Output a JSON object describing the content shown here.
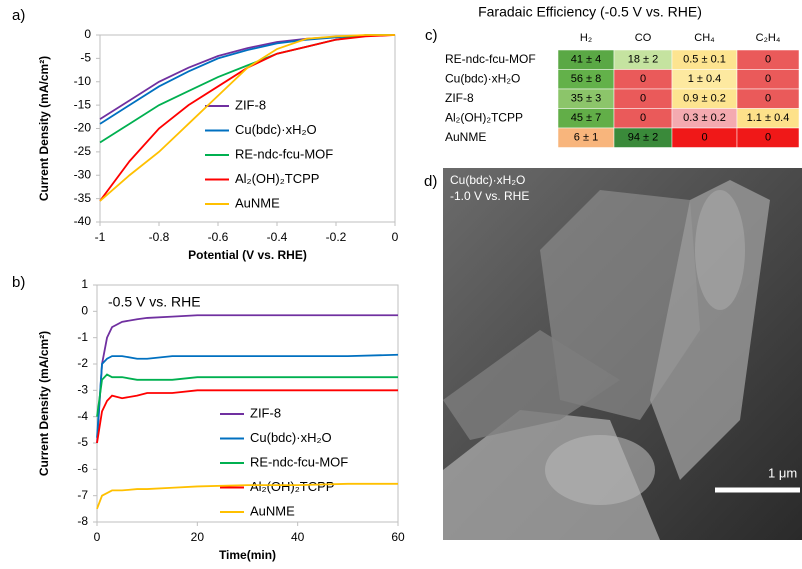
{
  "chart_data": [
    {
      "type": "line",
      "label": "a)",
      "xlabel": "Potential (V vs. RHE)",
      "ylabel": "Current Density (mA/cm²)",
      "x": [
        -1,
        -0.9,
        -0.8,
        -0.7,
        -0.6,
        -0.5,
        -0.4,
        -0.3,
        -0.2,
        -0.1,
        0
      ],
      "xlim": [
        -1,
        0
      ],
      "xticks": [
        -1,
        -0.8,
        -0.6,
        -0.4,
        -0.2,
        0
      ],
      "ylim": [
        -40,
        0
      ],
      "yticks": [
        -40,
        -35,
        -30,
        -25,
        -20,
        -15,
        -10,
        -5,
        0
      ],
      "series": [
        {
          "name": "ZIF-8",
          "color": "#7030a0",
          "values": [
            -18,
            -14,
            -10,
            -7,
            -4.5,
            -2.8,
            -1.5,
            -0.8,
            -0.4,
            -0.1,
            0
          ]
        },
        {
          "name": "Cu(bdc)·xH₂O",
          "color": "#0070c0",
          "values": [
            -19,
            -15,
            -11,
            -7.8,
            -5,
            -3.2,
            -1.8,
            -1,
            -0.5,
            -0.1,
            0
          ]
        },
        {
          "name": "RE-ndc-fcu-MOF",
          "color": "#00b050",
          "values": [
            -23,
            -19,
            -15,
            -12,
            -9,
            -6.5,
            -4,
            -2.5,
            -1,
            0,
            0
          ]
        },
        {
          "name": "Al₂(OH)₂TCPP",
          "color": "#ff0000",
          "values": [
            -35.5,
            -27,
            -20,
            -15,
            -11,
            -7,
            -4,
            -2.5,
            -1,
            -0.3,
            0
          ]
        },
        {
          "name": "AuNME",
          "color": "#ffc000",
          "values": [
            -35.5,
            -30,
            -25,
            -19,
            -13,
            -7,
            -3,
            -0.8,
            -0.3,
            0,
            0
          ]
        }
      ]
    },
    {
      "type": "line",
      "label": "b)",
      "xlabel": "Time(min)",
      "ylabel": "Current Density (mA/cm²)",
      "annotation": "-0.5 V vs. RHE",
      "x": [
        0,
        1,
        2,
        3,
        5,
        8,
        10,
        15,
        20,
        30,
        40,
        50,
        60
      ],
      "xlim": [
        0,
        60
      ],
      "xticks": [
        0,
        20,
        40,
        60
      ],
      "ylim": [
        -8,
        1
      ],
      "yticks": [
        -8,
        -7,
        -6,
        -5,
        -4,
        -3,
        -2,
        -1,
        0,
        1
      ],
      "series": [
        {
          "name": "ZIF-8",
          "color": "#7030a0",
          "values": [
            -5,
            -2,
            -1,
            -0.6,
            -0.4,
            -0.3,
            -0.25,
            -0.2,
            -0.15,
            -0.15,
            -0.15,
            -0.15,
            -0.15
          ]
        },
        {
          "name": "Cu(bdc)·xH₂O",
          "color": "#0070c0",
          "values": [
            -4.8,
            -2,
            -1.8,
            -1.7,
            -1.7,
            -1.8,
            -1.8,
            -1.7,
            -1.7,
            -1.7,
            -1.7,
            -1.7,
            -1.65
          ]
        },
        {
          "name": "RE-ndc-fcu-MOF",
          "color": "#00b050",
          "values": [
            -4,
            -2.6,
            -2.4,
            -2.5,
            -2.5,
            -2.6,
            -2.6,
            -2.6,
            -2.5,
            -2.5,
            -2.5,
            -2.5,
            -2.5
          ]
        },
        {
          "name": "Al₂(OH)₂TCPP",
          "color": "#ff0000",
          "values": [
            -5,
            -3.8,
            -3.4,
            -3.2,
            -3.3,
            -3.2,
            -3.1,
            -3.1,
            -3,
            -3,
            -3,
            -3,
            -3
          ]
        },
        {
          "name": "AuNME",
          "color": "#ffc000",
          "values": [
            -7.5,
            -7,
            -6.9,
            -6.8,
            -6.8,
            -6.75,
            -6.75,
            -6.7,
            -6.65,
            -6.6,
            -6.6,
            -6.55,
            -6.55
          ]
        }
      ]
    }
  ],
  "table": {
    "label": "c)",
    "title": "Faradaic Efficiency (-0.5 V vs. RHE)",
    "columns": [
      "H₂",
      "CO",
      "CH₄",
      "C₂H₄"
    ],
    "rows": [
      {
        "name": "RE-ndc-fcu-MOF",
        "cells": [
          "41 ± 4",
          "18 ± 2",
          "0.5 ± 0.1",
          "0"
        ],
        "colors": [
          "#5aa845",
          "#c5e3a0",
          "#fde490",
          "#ea5a5a"
        ]
      },
      {
        "name": "Cu(bdc)·xH₂O",
        "cells": [
          "56 ± 8",
          "0",
          "1 ± 0.4",
          "0"
        ],
        "colors": [
          "#63b14a",
          "#ea5a5a",
          "#fde9a0",
          "#ea5a5a"
        ]
      },
      {
        "name": "ZIF-8",
        "cells": [
          "35 ± 3",
          "0",
          "0.9 ± 0.2",
          "0"
        ],
        "colors": [
          "#8cc56a",
          "#ea5a5a",
          "#fde490",
          "#ea5a5a"
        ]
      },
      {
        "name": "Al₂(OH)₂TCPP",
        "cells": [
          "45 ± 7",
          "0",
          "0.3 ± 0.2",
          "1.1 ± 0.4"
        ],
        "colors": [
          "#62ae48",
          "#ea5a5a",
          "#f4aab0",
          "#fde18a"
        ]
      },
      {
        "name": "AuNME",
        "cells": [
          "6 ± 1",
          "94 ± 2",
          "0",
          "0"
        ],
        "colors": [
          "#f8b57c",
          "#3a8a3a",
          "#f01818",
          "#f01818"
        ]
      }
    ]
  },
  "image": {
    "label": "d)",
    "caption": [
      "Cu(bdc)·xH₂O",
      "-1.0 V vs. RHE"
    ],
    "scale_bar": "1 μm"
  }
}
